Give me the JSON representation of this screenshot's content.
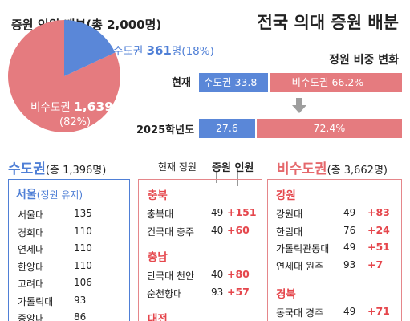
{
  "title": "전국 의대 증원 배분",
  "pie_title": "증원 인원 배분(총 2,000명)",
  "pie": {
    "capital": {
      "label": "수도권",
      "value": "361",
      "unit": "명",
      "pct": "(18%)"
    },
    "noncapital": {
      "label": "비수도권",
      "value": "1,639",
      "unit": "명",
      "pct": "(82%)"
    }
  },
  "ratio": {
    "title": "정원 비중 변화",
    "now_label": "현재",
    "now_capital": "수도권 33.8",
    "now_noncapital": "비수도권 66.2%",
    "future_label": "2025학년도",
    "future_capital": "27.6",
    "future_noncapital": "72.4%"
  },
  "capital_section": {
    "title": "수도권",
    "subtitle": "(총 1,396명)"
  },
  "noncapital_section": {
    "title": "비수도권",
    "subtitle": "(총 3,662명)"
  },
  "col_headers": {
    "current": "현재 정원",
    "increase": "증원 인원"
  },
  "seoul": {
    "name": "서울",
    "note": "(정원 유지)",
    "rows": [
      {
        "name": "서울대",
        "cur": "135"
      },
      {
        "name": "경희대",
        "cur": "110"
      },
      {
        "name": "연세대",
        "cur": "110"
      },
      {
        "name": "한양대",
        "cur": "110"
      },
      {
        "name": "고려대",
        "cur": "106"
      },
      {
        "name": "가톨릭대",
        "cur": "93"
      },
      {
        "name": "중앙대",
        "cur": "86"
      }
    ]
  },
  "chungbuk": {
    "name": "충북",
    "rows": [
      {
        "name": "충북대",
        "cur": "49",
        "inc": "+151"
      },
      {
        "name": "건국대 충주",
        "cur": "40",
        "inc": "+60"
      }
    ]
  },
  "chungnam": {
    "name": "충남",
    "rows": [
      {
        "name": "단국대 천안",
        "cur": "40",
        "inc": "+80"
      },
      {
        "name": "순천향대",
        "cur": "93",
        "inc": "+57"
      }
    ]
  },
  "daejeon": {
    "name": "대전"
  },
  "gangwon": {
    "name": "강원",
    "rows": [
      {
        "name": "강원대",
        "cur": "49",
        "inc": "+83"
      },
      {
        "name": "한림대",
        "cur": "76",
        "inc": "+24"
      },
      {
        "name": "가톨릭관동대",
        "cur": "49",
        "inc": "+51"
      },
      {
        "name": "연세대 원주",
        "cur": "93",
        "inc": "+7"
      }
    ]
  },
  "gyeongbuk": {
    "name": "경북",
    "rows": [
      {
        "name": "동국대 경주",
        "cur": "49",
        "inc": "+71"
      }
    ]
  },
  "chart_data": [
    {
      "type": "pie",
      "title": "증원 인원 배분(총 2,000명)",
      "labels": [
        "수도권",
        "비수도권"
      ],
      "values": [
        361,
        1639
      ],
      "percent": [
        18,
        82
      ]
    },
    {
      "type": "bar",
      "title": "정원 비중 변화",
      "categories": [
        "현재",
        "2025학년도"
      ],
      "series": [
        {
          "name": "수도권",
          "values": [
            33.8,
            27.6
          ]
        },
        {
          "name": "비수도권",
          "values": [
            66.2,
            72.4
          ]
        }
      ]
    }
  ],
  "colors": {
    "capital": "#5a87d8",
    "noncapital": "#e57b7f",
    "increase": "#e5464c",
    "arrow": "#9e9e9e"
  }
}
